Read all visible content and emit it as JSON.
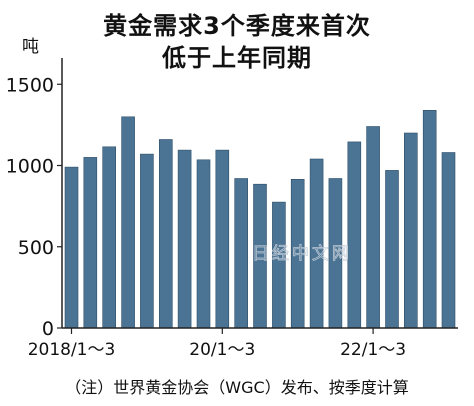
{
  "chart_data": {
    "type": "bar",
    "title": [
      "黄金需求3个季度来首次",
      "低于上年同期"
    ],
    "ylabel": "吨",
    "ylim": [
      0,
      1600
    ],
    "yticks": [
      0,
      500,
      1000,
      1500
    ],
    "x_tick_labels": [
      "2018/1～3",
      "20/1～3",
      "22/1～3"
    ],
    "x_tick_index": [
      0,
      8,
      16
    ],
    "values": [
      990,
      1050,
      1115,
      1300,
      1070,
      1160,
      1095,
      1035,
      1095,
      920,
      885,
      775,
      915,
      1040,
      920,
      1145,
      1240,
      970,
      1200,
      1340,
      1080
    ],
    "grid": false,
    "bar_color": "#4a7394"
  },
  "watermark": "日经中文网",
  "note": "（注）世界黄金协会（WGC）发布、按季度计算"
}
